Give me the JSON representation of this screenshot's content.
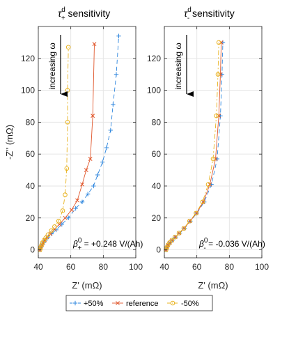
{
  "colors": {
    "plus50": "#2e86de",
    "reference": "#e0562b",
    "minus50": "#e8b321"
  },
  "legend": {
    "items": [
      {
        "label": "+50%",
        "marker": "plus",
        "style": "dashed",
        "color": "#2e86de"
      },
      {
        "label": "reference",
        "marker": "x",
        "style": "solid",
        "color": "#e0562b"
      },
      {
        "label": "-50%",
        "marker": "circle",
        "style": "dashdot",
        "color": "#e8b321"
      }
    ]
  },
  "chart_data": [
    {
      "type": "line",
      "title": {
        "sym": "τ",
        "sup": "d",
        "sub": "+",
        "text": " sensitivity"
      },
      "xlabel": "Z' (mΩ)",
      "ylabel": "-Z'' (mΩ)",
      "xlim": [
        40,
        100
      ],
      "ylim": [
        -5,
        140
      ],
      "xticks": [
        "40",
        "60",
        "80",
        "100"
      ],
      "yticks": [
        "0",
        "20",
        "40",
        "60",
        "80",
        "100",
        "120"
      ],
      "grid": true,
      "arrow_label": "increasing ω",
      "beta": {
        "sym": "β",
        "sup": "0",
        "sub": "+",
        "text": " = +0.248 V/(Ah)"
      },
      "series": [
        {
          "name": "+50%",
          "x": [
            41.0,
            41.6,
            42.3,
            43.2,
            44.4,
            46.0,
            48.2,
            51.0,
            54.5,
            58.5,
            63.0,
            67.0,
            70.5,
            74.0,
            76.5,
            79.5,
            82.0,
            84.5,
            86.0,
            88.0,
            89.5
          ],
          "y": [
            0,
            1.5,
            3,
            4.5,
            6,
            8,
            10,
            12.5,
            16,
            20,
            26,
            30,
            35,
            40,
            47,
            55,
            64,
            75,
            91,
            110,
            134
          ]
        },
        {
          "name": "reference",
          "x": [
            41.0,
            41.5,
            42.2,
            43.0,
            44.0,
            45.5,
            47.5,
            50.0,
            53.0,
            56.5,
            60.5,
            64.0,
            67.0,
            69.5,
            72.0,
            73.5,
            74.5
          ],
          "y": [
            0,
            1.5,
            3,
            4.5,
            6,
            8,
            10,
            13,
            16,
            20,
            25,
            31,
            41,
            50,
            57,
            84,
            129
          ]
        },
        {
          "name": "-50%",
          "x": [
            41.0,
            41.4,
            42.0,
            42.6,
            43.5,
            44.6,
            46.0,
            48.0,
            50.0,
            52.5,
            55.0,
            56.5,
            57.5,
            58.0,
            58.0,
            58.5
          ],
          "y": [
            0,
            1.5,
            3,
            4.5,
            6,
            7.5,
            9.5,
            12,
            14.5,
            18,
            24.5,
            34.5,
            51,
            80,
            100,
            127
          ]
        }
      ]
    },
    {
      "type": "line",
      "title": {
        "sym": "τ",
        "sup": "d",
        "sub": "-",
        "text": " sensitivity"
      },
      "xlabel": "Z' (mΩ)",
      "ylabel": "",
      "xlim": [
        40,
        100
      ],
      "ylim": [
        -5,
        140
      ],
      "xticks": [
        "40",
        "60",
        "80",
        "100"
      ],
      "yticks": [
        "0",
        "20",
        "40",
        "60",
        "80",
        "100",
        "120"
      ],
      "grid": true,
      "arrow_label": "increasing ω",
      "beta": {
        "sym": "β",
        "sup": "0",
        "sub": "-",
        "text": " = -0.036 V/(Ah)"
      },
      "series": [
        {
          "name": "+50%",
          "x": [
            41.0,
            41.6,
            42.4,
            43.5,
            45.0,
            47.0,
            49.5,
            52.5,
            56.0,
            60.0,
            64.5,
            69.0,
            72.5,
            74.5,
            75.5,
            76.0
          ],
          "y": [
            0,
            1.5,
            3,
            4.5,
            6,
            8,
            10.5,
            13.5,
            18,
            23,
            30,
            41,
            57,
            84,
            110,
            130
          ]
        },
        {
          "name": "reference",
          "x": [
            41.0,
            41.6,
            42.3,
            43.4,
            44.8,
            46.8,
            49.2,
            52.2,
            55.8,
            59.8,
            64.0,
            68.0,
            71.5,
            73.5,
            74.5,
            75.0
          ],
          "y": [
            0,
            1.5,
            3,
            4.5,
            6,
            8,
            10.5,
            13.5,
            18,
            23,
            30,
            41,
            57,
            84,
            110,
            130
          ]
        },
        {
          "name": "-50%",
          "x": [
            41.0,
            41.5,
            42.2,
            43.2,
            44.6,
            46.5,
            49.0,
            52.0,
            55.5,
            59.5,
            63.5,
            67.0,
            70.0,
            72.0,
            73.0,
            73.5
          ],
          "y": [
            0,
            1.5,
            3,
            4.5,
            6,
            8,
            10.5,
            13.5,
            18,
            23,
            30,
            41,
            57,
            84,
            110,
            130
          ]
        }
      ]
    }
  ]
}
